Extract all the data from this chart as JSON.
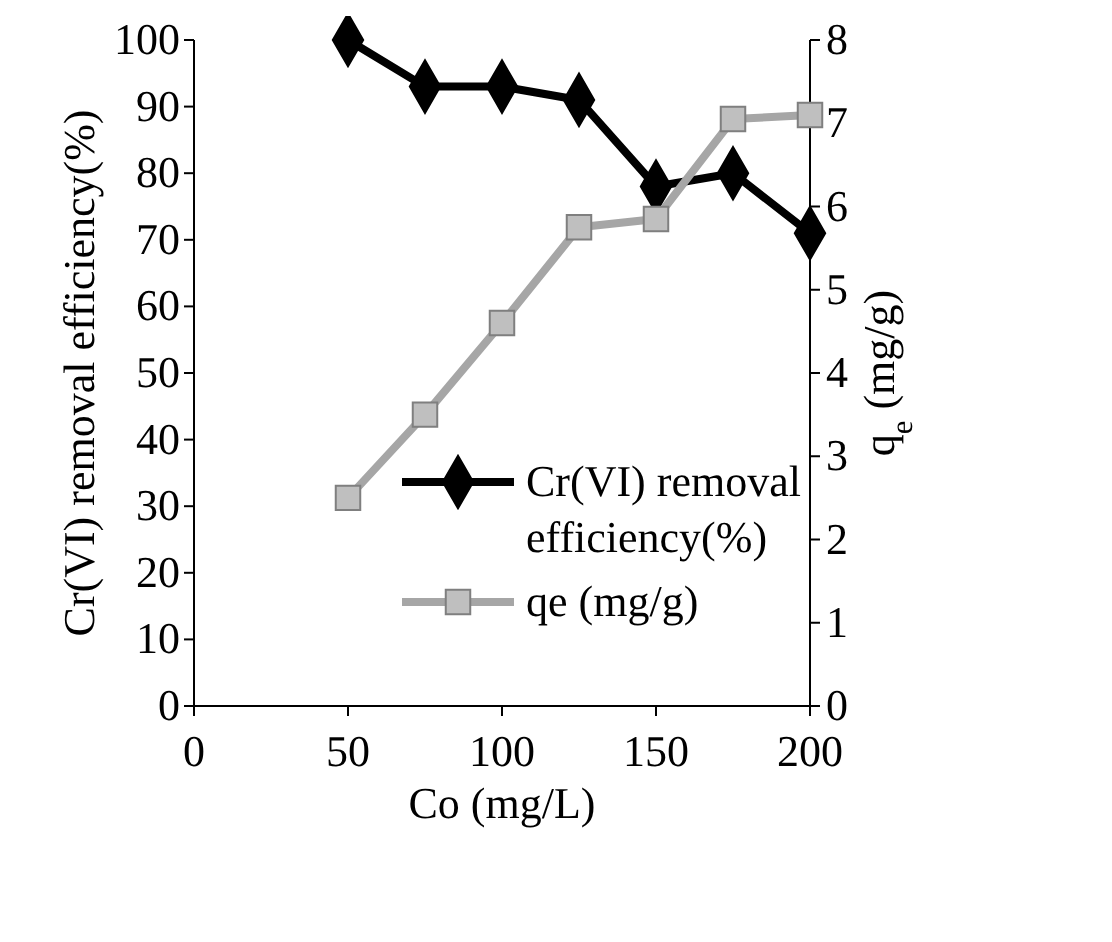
{
  "chart_data": {
    "type": "line",
    "xlabel": "Co (mg/L)",
    "ylabel": "Cr(VI) removal  efficiency(%)",
    "y2label": "q$_{e}$ (mg/g)",
    "x": [
      50,
      75,
      100,
      125,
      150,
      175,
      200
    ],
    "series": [
      {
        "name": "Cr(VI) removal efficiency(%)",
        "color": "#000000",
        "marker": "diamond",
        "values": [
          100,
          93,
          93,
          91,
          78,
          80,
          71
        ]
      },
      {
        "name": "qe (mg/g)",
        "color": "#a6a6a6",
        "marker": "square",
        "axis": "y2",
        "values": [
          2.5,
          3.5,
          4.6,
          5.75,
          5.85,
          7.05,
          7.1
        ]
      }
    ],
    "xlim": [
      0,
      200
    ],
    "xticks": [
      0,
      50,
      100,
      150,
      200
    ],
    "ylim": [
      0,
      100
    ],
    "yticks": [
      0,
      10,
      20,
      30,
      40,
      50,
      60,
      70,
      80,
      90,
      100
    ],
    "y2lim": [
      0,
      8
    ],
    "y2ticks": [
      0,
      1,
      2,
      3,
      4,
      5,
      6,
      7,
      8
    ],
    "grid": false,
    "legend": "bottom right",
    "line_style": "solid"
  }
}
